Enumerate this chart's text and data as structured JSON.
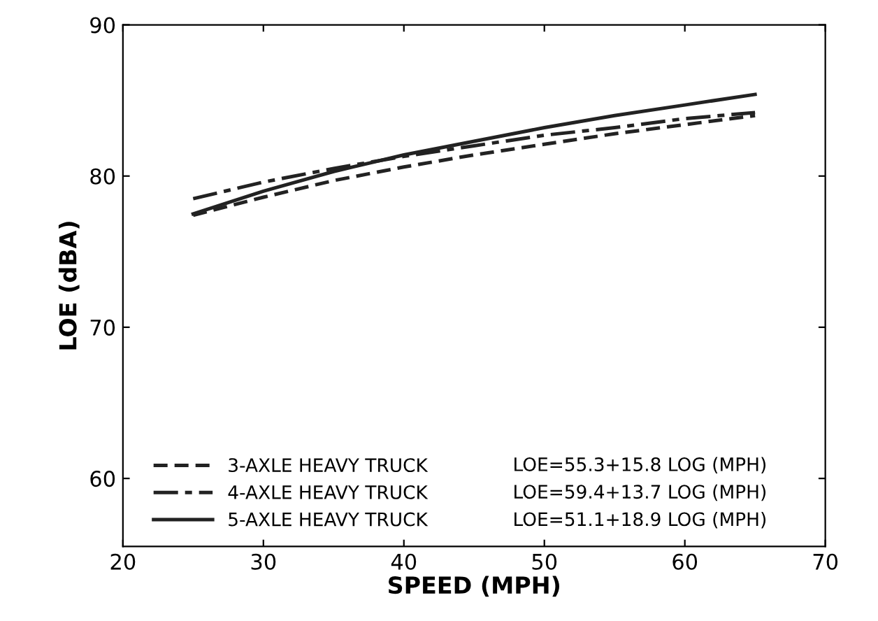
{
  "chart_data": {
    "type": "line",
    "xlabel": "SPEED (MPH)",
    "ylabel": "LOE (dBA)",
    "x": [
      25,
      30,
      35,
      40,
      45,
      50,
      55,
      60,
      65
    ],
    "series": [
      {
        "name": "3-AXLE HEAVY TRUCK",
        "color": "#222222",
        "line_style": "dashed",
        "values": [
          77.4,
          78.6,
          79.7,
          80.6,
          81.4,
          82.1,
          82.8,
          83.4,
          84.0
        ]
      },
      {
        "name": "4-AXLE HEAVY TRUCK",
        "color": "#222222",
        "line_style": "dashdot",
        "values": [
          78.5,
          79.6,
          80.5,
          81.3,
          82.0,
          82.7,
          83.2,
          83.8,
          84.2
        ]
      },
      {
        "name": "5-AXLE HEAVY TRUCK",
        "color": "#222222",
        "line_style": "solid",
        "values": [
          77.5,
          79.0,
          80.3,
          81.4,
          82.3,
          83.2,
          84.0,
          84.7,
          85.4
        ]
      }
    ],
    "annotations": [
      "LOE=55.3+15.8 LOG (MPH)",
      "LOE=59.4+13.7 LOG (MPH)",
      "LOE=51.1+18.9 LOG (MPH)"
    ],
    "xlim": [
      20,
      70
    ],
    "ylim": [
      55.5,
      90
    ],
    "xticks": [
      20,
      30,
      40,
      50,
      60,
      70
    ],
    "yticks": [
      60,
      70,
      80,
      90
    ],
    "legend": "bottom left",
    "grid": false
  }
}
